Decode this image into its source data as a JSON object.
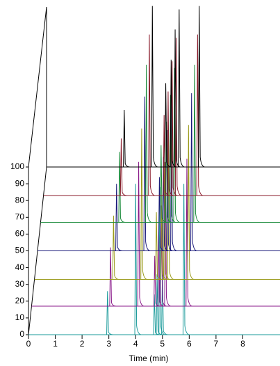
{
  "chart_data": {
    "type": "waterfall",
    "x_label": "Time (min)",
    "xlim": [
      0,
      9
    ],
    "xticks": [
      0,
      1,
      2,
      3,
      4,
      5,
      6,
      7,
      8
    ],
    "ylim": [
      0,
      100
    ],
    "yticks": [
      0,
      10,
      20,
      30,
      40,
      50,
      60,
      70,
      80,
      90,
      100
    ],
    "series": [
      {
        "color": "#1a9a9a",
        "baseline": 0,
        "peak_times": [
          2.95,
          4.0,
          4.7,
          4.8,
          4.9,
          5.0,
          5.8
        ],
        "peak_heights": [
          26,
          90,
          24,
          36,
          88,
          38,
          90
        ]
      },
      {
        "color": "#8a1a8a",
        "baseline": 17,
        "peak_times": [
          2.95,
          4.0,
          4.6,
          4.75,
          4.85,
          5.0,
          5.8
        ],
        "peak_heights": [
          35,
          86,
          30,
          44,
          60,
          86,
          88
        ]
      },
      {
        "color": "#9a9a1a",
        "baseline": 33,
        "peak_times": [
          2.95,
          4.0,
          4.55,
          4.75,
          4.85,
          5.0,
          5.75
        ],
        "peak_heights": [
          38,
          90,
          40,
          50,
          70,
          88,
          92
        ]
      },
      {
        "color": "#1a1a7a",
        "baseline": 50,
        "peak_times": [
          2.95,
          4.0,
          4.55,
          4.7,
          4.85,
          5.0,
          5.75
        ],
        "peak_heights": [
          40,
          92,
          44,
          56,
          72,
          90,
          94
        ]
      },
      {
        "color": "#1a8a3a",
        "baseline": 67,
        "peak_times": [
          2.95,
          3.95,
          4.5,
          4.7,
          4.85,
          5.0,
          5.75
        ],
        "peak_heights": [
          42,
          94,
          46,
          60,
          76,
          92,
          94
        ]
      },
      {
        "color": "#8a1a2a",
        "baseline": 83,
        "peak_times": [
          2.9,
          3.95,
          4.5,
          4.65,
          4.8,
          4.95,
          5.75
        ],
        "peak_heights": [
          34,
          96,
          48,
          62,
          80,
          94,
          96
        ]
      },
      {
        "color": "#000000",
        "baseline": 100,
        "peak_times": [
          2.9,
          3.95,
          4.45,
          4.65,
          4.8,
          4.95,
          5.7
        ],
        "peak_heights": [
          34,
          96,
          50,
          64,
          82,
          94,
          96
        ]
      }
    ]
  }
}
